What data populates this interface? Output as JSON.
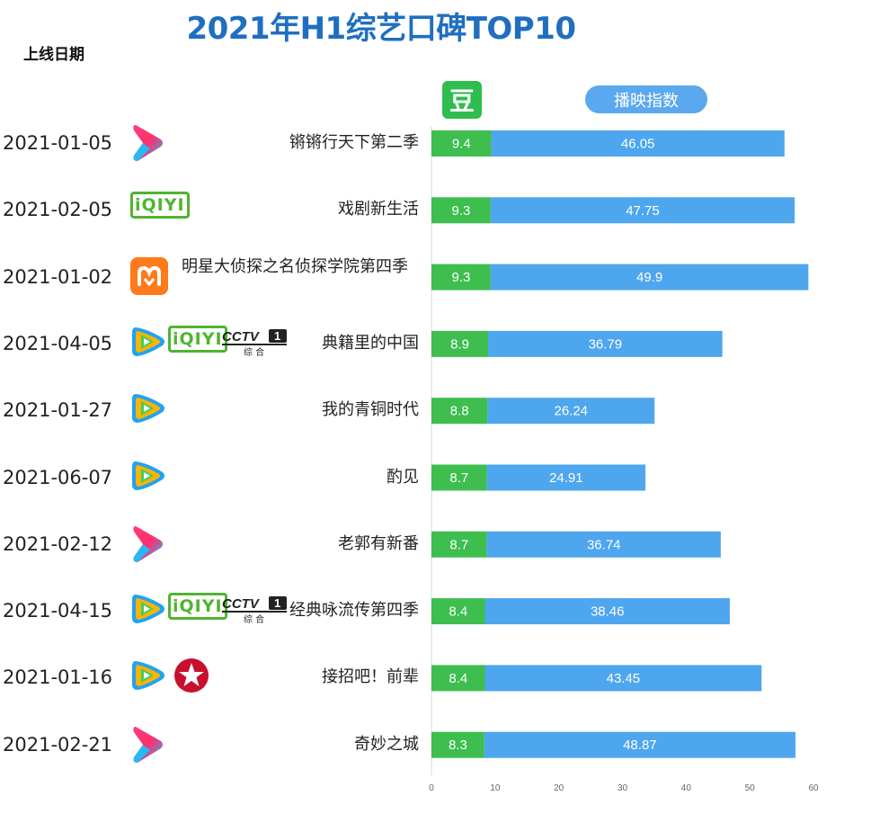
{
  "title": "2021年H1综艺口碑TOP10",
  "date_header": "上线日期",
  "douban_label": "豆",
  "index_label": "播映指数",
  "colors": {
    "douban": "#3dbe4f",
    "index": "#4ea6ee",
    "title": "#1f6fc0"
  },
  "chart_data": {
    "type": "bar",
    "orientation": "horizontal",
    "stacked": true,
    "xlim": [
      0,
      60
    ],
    "xticks": [
      0,
      10,
      20,
      30,
      40,
      50,
      60
    ],
    "categories": [
      "锵锵行天下第二季",
      "戏剧新生活",
      "明星大侦探之名侦探学院第四季",
      "典籍里的中国",
      "我的青铜时代",
      "酌见",
      "老郭有新番",
      "经典咏流传第四季",
      "接招吧！前辈",
      "奇妙之城"
    ],
    "series": [
      {
        "name": "豆",
        "values": [
          9.4,
          9.3,
          9.3,
          8.9,
          8.8,
          8.7,
          8.7,
          8.4,
          8.4,
          8.3
        ]
      },
      {
        "name": "播映指数",
        "values": [
          46.05,
          47.75,
          49.9,
          36.79,
          26.24,
          24.91,
          36.74,
          38.46,
          43.45,
          48.87
        ]
      }
    ]
  },
  "rows": [
    {
      "date": "2021-01-05",
      "name": "锵锵行天下第二季",
      "platforms": [
        "youku-icon"
      ]
    },
    {
      "date": "2021-02-05",
      "name": "戏剧新生活",
      "platforms": [
        "iqiyi-icon"
      ]
    },
    {
      "date": "2021-01-02",
      "name": "明星大侦探之名侦探学院第四季",
      "platforms": [
        "mango-tv-icon"
      ]
    },
    {
      "date": "2021-04-05",
      "name": "典籍里的中国",
      "platforms": [
        "tencent-video-icon",
        "iqiyi-icon",
        "cctv1-icon"
      ]
    },
    {
      "date": "2021-01-27",
      "name": "我的青铜时代",
      "platforms": [
        "tencent-video-icon"
      ]
    },
    {
      "date": "2021-06-07",
      "name": "酌见",
      "platforms": [
        "tencent-video-icon"
      ]
    },
    {
      "date": "2021-02-12",
      "name": "老郭有新番",
      "platforms": [
        "youku-icon"
      ]
    },
    {
      "date": "2021-04-15",
      "name": "经典咏流传第四季",
      "platforms": [
        "tencent-video-icon",
        "iqiyi-icon",
        "cctv1-icon"
      ]
    },
    {
      "date": "2021-01-16",
      "name": "接招吧！前辈",
      "platforms": [
        "tencent-video-icon",
        "dragon-tv-icon"
      ]
    },
    {
      "date": "2021-02-21",
      "name": "奇妙之城",
      "platforms": [
        "youku-icon"
      ]
    }
  ],
  "logo_text": {
    "iqiyi": "iQIYI",
    "cctv": "CCTV",
    "cctv_channel": "1",
    "cctv_sub": "综 合"
  }
}
